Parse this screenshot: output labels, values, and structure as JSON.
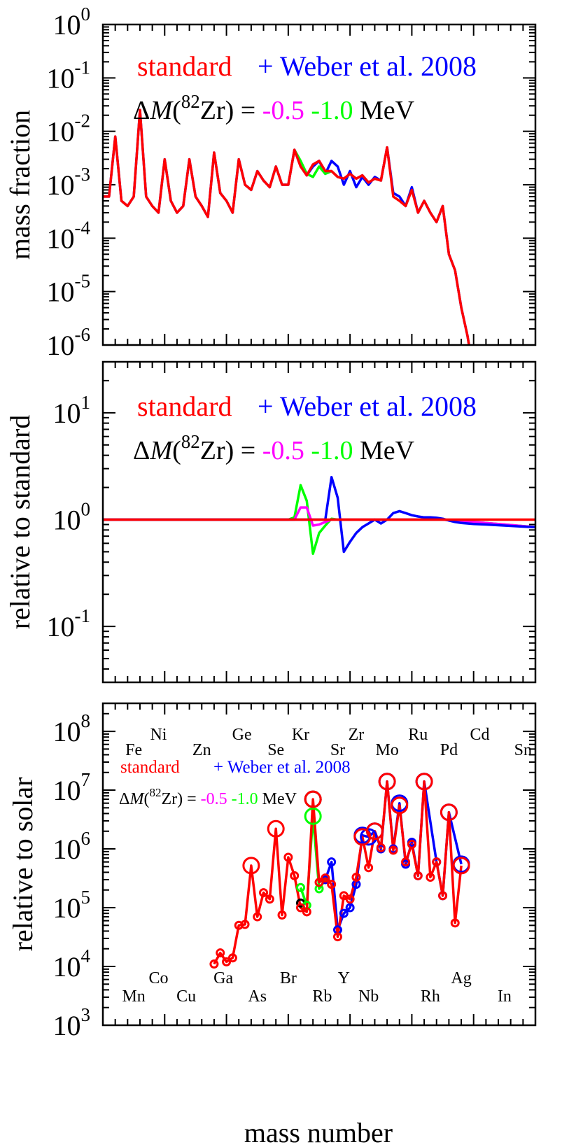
{
  "colors": {
    "standard": "#ff0000",
    "weber": "#0000ff",
    "minus05": "#ff00ff",
    "minus10": "#00ff00",
    "black": "#000000"
  },
  "labels": {
    "standard": "standard",
    "weber": "+ Weber et al. 2008",
    "delta_prefix": "ΔM(",
    "delta_sup": "82",
    "delta_suffix": "Zr) =",
    "m05": "-0.5",
    "m10": "-1.0",
    "mev": "MeV",
    "xlabel": "mass number"
  },
  "chart_data": [
    {
      "type": "line",
      "ylabel": "mass fraction",
      "yscale": "log",
      "ylim": [
        1e-06,
        1
      ],
      "xlim": [
        50,
        120
      ],
      "ytick_exps": [
        -6,
        -5,
        -4,
        -3,
        -2,
        -1,
        0
      ],
      "series": [
        {
          "key": "weber",
          "x": [
            50,
            51,
            52,
            53,
            54,
            55,
            56,
            57,
            58,
            59,
            60,
            61,
            62,
            63,
            64,
            65,
            66,
            67,
            68,
            69,
            70,
            71,
            72,
            73,
            74,
            75,
            76,
            77,
            78,
            79,
            80,
            81,
            82,
            83,
            84,
            85,
            86,
            87,
            88,
            89,
            90,
            91,
            92,
            93,
            94,
            95,
            96,
            97,
            98,
            99,
            100,
            101,
            102,
            103,
            104,
            105,
            106,
            107,
            108,
            109,
            110
          ],
          "y": [
            0.0006,
            0.0006,
            0.008,
            0.0005,
            0.0004,
            0.0006,
            0.025,
            0.0006,
            0.0004,
            0.0003,
            0.003,
            0.0005,
            0.0003,
            0.0004,
            0.003,
            0.0006,
            0.0004,
            0.00025,
            0.004,
            0.0007,
            0.0005,
            0.0003,
            0.003,
            0.001,
            0.0008,
            0.0018,
            0.0012,
            0.0009,
            0.0022,
            0.001,
            0.001,
            0.0045,
            0.0025,
            0.0015,
            0.0022,
            0.0028,
            0.0016,
            0.0028,
            0.0022,
            0.001,
            0.0018,
            0.0009,
            0.0014,
            0.001,
            0.0014,
            0.0012,
            0.005,
            0.0007,
            0.0006,
            0.0004,
            0.0009,
            0.0003,
            0.0005,
            0.0003,
            0.0002,
            0.0004,
            5e-05,
            2.5e-05,
            5e-06,
            1.5e-06,
            3e-07
          ]
        },
        {
          "key": "minus10",
          "x": [
            80,
            81,
            82,
            83,
            84,
            85,
            86,
            87,
            88,
            89,
            90,
            91,
            92,
            93,
            94,
            95,
            96
          ],
          "y": [
            0.001,
            0.0045,
            0.0028,
            0.0016,
            0.0014,
            0.0022,
            0.0016,
            0.0018,
            0.0014,
            0.0013,
            0.0016,
            0.0013,
            0.0015,
            0.0011,
            0.0013,
            0.0012,
            0.005
          ]
        },
        {
          "key": "minus05",
          "x": [
            80,
            81,
            82,
            83,
            84,
            85,
            86,
            87,
            88,
            89,
            90,
            91,
            92,
            93,
            94,
            95,
            96
          ],
          "y": [
            0.001,
            0.0045,
            0.0022,
            0.0015,
            0.0024,
            0.0028,
            0.0018,
            0.0018,
            0.0014,
            0.0013,
            0.0016,
            0.0013,
            0.0015,
            0.0011,
            0.0013,
            0.0012,
            0.005
          ]
        },
        {
          "key": "standard",
          "x": [
            50,
            51,
            52,
            53,
            54,
            55,
            56,
            57,
            58,
            59,
            60,
            61,
            62,
            63,
            64,
            65,
            66,
            67,
            68,
            69,
            70,
            71,
            72,
            73,
            74,
            75,
            76,
            77,
            78,
            79,
            80,
            81,
            82,
            83,
            84,
            85,
            86,
            87,
            88,
            89,
            90,
            91,
            92,
            93,
            94,
            95,
            96,
            97,
            98,
            99,
            100,
            101,
            102,
            103,
            104,
            105,
            106,
            107,
            108,
            109,
            110
          ],
          "y": [
            0.0006,
            0.0006,
            0.008,
            0.0005,
            0.0004,
            0.0006,
            0.025,
            0.0006,
            0.0004,
            0.0003,
            0.003,
            0.0005,
            0.0003,
            0.0004,
            0.003,
            0.0006,
            0.0004,
            0.00025,
            0.004,
            0.0007,
            0.0005,
            0.0003,
            0.003,
            0.001,
            0.0008,
            0.0018,
            0.0012,
            0.0009,
            0.0022,
            0.001,
            0.001,
            0.0045,
            0.0022,
            0.0015,
            0.0024,
            0.0028,
            0.0018,
            0.0018,
            0.0014,
            0.0013,
            0.0016,
            0.0013,
            0.0015,
            0.0011,
            0.0013,
            0.0012,
            0.005,
            0.0006,
            0.0005,
            0.0004,
            0.0008,
            0.0003,
            0.0005,
            0.0003,
            0.0002,
            0.0004,
            5e-05,
            2.5e-05,
            5e-06,
            1.5e-06,
            3e-07
          ]
        }
      ]
    },
    {
      "type": "line",
      "ylabel": "relative to standard",
      "yscale": "log",
      "ylim": [
        0.03,
        30
      ],
      "xlim": [
        50,
        120
      ],
      "ytick_exps": [
        -1,
        0,
        1
      ],
      "series": [
        {
          "key": "minus10",
          "x": [
            50,
            55,
            60,
            65,
            70,
            75,
            80,
            81,
            82,
            83,
            84,
            85,
            86,
            87,
            88,
            89,
            90,
            91,
            92,
            93,
            94,
            95,
            96,
            97,
            98,
            99,
            100,
            105,
            110,
            115,
            120
          ],
          "y": [
            1.0,
            1.0,
            1.0,
            1.0,
            1.0,
            1.0,
            1.0,
            1.05,
            2.1,
            1.5,
            0.48,
            0.75,
            0.88,
            1.02,
            1.0,
            1.0,
            1.0,
            1.0,
            1.0,
            1.0,
            1.0,
            1.0,
            1.0,
            1.0,
            1.0,
            1.0,
            1.0,
            1.0,
            0.95,
            0.9,
            0.85
          ]
        },
        {
          "key": "minus05",
          "x": [
            50,
            55,
            60,
            65,
            70,
            75,
            80,
            81,
            82,
            83,
            84,
            85,
            86,
            87,
            88,
            89,
            90,
            91,
            92,
            93,
            94,
            95,
            96,
            97,
            98,
            99,
            100,
            105,
            110,
            115,
            120
          ],
          "y": [
            1.0,
            1.0,
            1.0,
            1.0,
            1.0,
            1.0,
            1.0,
            1.0,
            1.3,
            1.3,
            0.88,
            0.9,
            0.95,
            1.0,
            1.0,
            1.0,
            1.0,
            1.0,
            1.0,
            1.0,
            1.0,
            1.0,
            1.0,
            1.0,
            1.0,
            1.0,
            1.0,
            1.0,
            0.95,
            0.9,
            0.85
          ]
        },
        {
          "key": "weber",
          "x": [
            50,
            55,
            60,
            65,
            70,
            75,
            80,
            85,
            86,
            87,
            88,
            89,
            90,
            91,
            92,
            93,
            94,
            95,
            96,
            97,
            98,
            99,
            100,
            101,
            102,
            103,
            104,
            105,
            106,
            107,
            108,
            110,
            112,
            115,
            118,
            120
          ],
          "y": [
            1.0,
            1.0,
            1.0,
            1.0,
            1.0,
            1.0,
            1.0,
            1.0,
            1.0,
            2.5,
            1.6,
            0.5,
            0.62,
            0.75,
            0.85,
            0.92,
            1.0,
            0.92,
            1.0,
            1.15,
            1.2,
            1.15,
            1.1,
            1.07,
            1.05,
            1.05,
            1.04,
            1.02,
            0.98,
            0.95,
            0.93,
            0.91,
            0.9,
            0.88,
            0.86,
            0.85
          ]
        },
        {
          "key": "standard",
          "x": [
            50,
            120
          ],
          "y": [
            1.0,
            1.0
          ]
        }
      ]
    },
    {
      "type": "scatter",
      "ylabel": "relative to solar",
      "yscale": "log",
      "ylim": [
        1000,
        300000000
      ],
      "xlim": [
        50,
        120
      ],
      "ytick_exps": [
        3,
        4,
        5,
        6,
        7,
        8
      ],
      "elements_upper": [
        {
          "sym": "Fe",
          "a": 55,
          "row": 2
        },
        {
          "sym": "Ni",
          "a": 59,
          "row": 1
        },
        {
          "sym": "Zn",
          "a": 66,
          "row": 2
        },
        {
          "sym": "Ge",
          "a": 72.5,
          "row": 1
        },
        {
          "sym": "Se",
          "a": 78,
          "row": 2
        },
        {
          "sym": "Kr",
          "a": 82,
          "row": 1
        },
        {
          "sym": "Sr",
          "a": 88,
          "row": 2
        },
        {
          "sym": "Zr",
          "a": 91,
          "row": 1
        },
        {
          "sym": "Mo",
          "a": 96,
          "row": 2
        },
        {
          "sym": "Ru",
          "a": 101,
          "row": 1
        },
        {
          "sym": "Pd",
          "a": 106,
          "row": 2
        },
        {
          "sym": "Cd",
          "a": 111,
          "row": 1
        },
        {
          "sym": "Sn",
          "a": 118,
          "row": 2
        }
      ],
      "elements_lower": [
        {
          "sym": "Mn",
          "a": 55,
          "row": 2
        },
        {
          "sym": "Co",
          "a": 59,
          "row": 1
        },
        {
          "sym": "Cu",
          "a": 63.5,
          "row": 2
        },
        {
          "sym": "Ga",
          "a": 69.5,
          "row": 1
        },
        {
          "sym": "As",
          "a": 75,
          "row": 2
        },
        {
          "sym": "Br",
          "a": 80,
          "row": 1
        },
        {
          "sym": "Rb",
          "a": 85.5,
          "row": 2
        },
        {
          "sym": "Y",
          "a": 89,
          "row": 1
        },
        {
          "sym": "Nb",
          "a": 93,
          "row": 2
        },
        {
          "sym": "Rh",
          "a": 103,
          "row": 2
        },
        {
          "sym": "Ag",
          "a": 108,
          "row": 1
        },
        {
          "sym": "In",
          "a": 115,
          "row": 2
        }
      ],
      "black_points": [
        {
          "x": 84,
          "y": 7000000,
          "big": true
        },
        {
          "x": 82,
          "y": 120000,
          "big": false
        }
      ],
      "series": [
        {
          "key": "minus10",
          "pts": [
            [
              82,
              220000,
              0
            ],
            [
              83,
              110000,
              0
            ],
            [
              84,
              3600000,
              1
            ],
            [
              85,
              210000,
              0
            ],
            [
              86,
              300000,
              0
            ]
          ]
        },
        {
          "key": "weber",
          "pts": [
            [
              86,
              300000,
              0
            ],
            [
              87,
              600000,
              0
            ],
            [
              88,
              42000,
              0
            ],
            [
              89,
              80000,
              0
            ],
            [
              90,
              100000,
              0
            ],
            [
              91,
              250000,
              0
            ],
            [
              92,
              1700000,
              1
            ],
            [
              93,
              1600000,
              1
            ],
            [
              94,
              2000000,
              1
            ],
            [
              95,
              1000000,
              0
            ],
            [
              96,
              14000000,
              1
            ],
            [
              97,
              1000000,
              0
            ],
            [
              98,
              6000000,
              1
            ],
            [
              99,
              550000,
              0
            ],
            [
              100,
              1300000,
              0
            ],
            [
              101,
              350000,
              0
            ],
            [
              102,
              14000000,
              1
            ],
            [
              104,
              600000,
              0
            ],
            [
              105,
              160000,
              0
            ],
            [
              106,
              4200000,
              1
            ],
            [
              108,
              550000,
              1
            ]
          ]
        },
        {
          "key": "standard",
          "pts": [
            [
              68,
              11000,
              0
            ],
            [
              69,
              17000,
              0
            ],
            [
              70,
              12000,
              0
            ],
            [
              71,
              14000,
              0
            ],
            [
              72,
              50000,
              0
            ],
            [
              73,
              52000,
              0
            ],
            [
              74,
              520000,
              1
            ],
            [
              75,
              70000,
              0
            ],
            [
              76,
              180000,
              0
            ],
            [
              77,
              140000,
              0
            ],
            [
              78,
              2200000,
              1
            ],
            [
              79,
              75000,
              0
            ],
            [
              80,
              720000,
              0
            ],
            [
              81,
              350000,
              0
            ],
            [
              82,
              100000,
              0
            ],
            [
              83,
              85000,
              0
            ],
            [
              84,
              7000000,
              1
            ],
            [
              85,
              270000,
              0
            ],
            [
              86,
              320000,
              0
            ],
            [
              87,
              250000,
              0
            ],
            [
              88,
              32000,
              0
            ],
            [
              89,
              160000,
              0
            ],
            [
              90,
              140000,
              0
            ],
            [
              91,
              330000,
              0
            ],
            [
              92,
              1600000,
              1
            ],
            [
              93,
              480000,
              0
            ],
            [
              94,
              2000000,
              1
            ],
            [
              95,
              1050000,
              0
            ],
            [
              96,
              14000000,
              1
            ],
            [
              97,
              950000,
              0
            ],
            [
              98,
              5500000,
              1
            ],
            [
              99,
              600000,
              0
            ],
            [
              100,
              1200000,
              0
            ],
            [
              101,
              350000,
              0
            ],
            [
              102,
              14000000,
              1
            ],
            [
              103,
              330000,
              0
            ],
            [
              104,
              600000,
              0
            ],
            [
              105,
              160000,
              0
            ],
            [
              106,
              4200000,
              1
            ],
            [
              107,
              55000,
              0
            ],
            [
              108,
              520000,
              1
            ]
          ]
        }
      ]
    }
  ]
}
